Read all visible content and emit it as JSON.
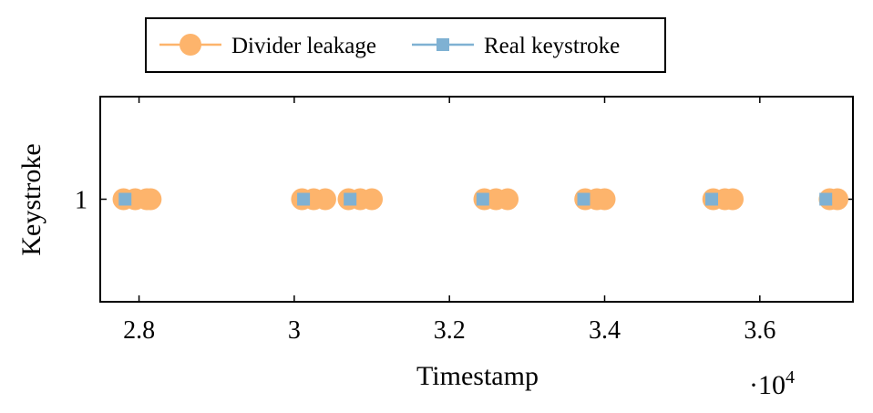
{
  "chart_data": {
    "type": "scatter",
    "xlabel": "Timestamp",
    "ylabel": "Keystroke",
    "x_multiplier_label": "·10",
    "x_multiplier_exponent": "4",
    "xlim": [
      27500,
      37200
    ],
    "ylim": [
      0,
      2
    ],
    "x_ticks": [
      28000,
      30000,
      32000,
      34000,
      36000
    ],
    "x_tick_labels": [
      "2.8",
      "3",
      "3.2",
      "3.4",
      "3.6"
    ],
    "y_ticks": [
      1
    ],
    "y_tick_labels": [
      "1"
    ],
    "grid": false,
    "legend_position": "top-center",
    "series": [
      {
        "name": "Divider leakage",
        "color": "#FDB46C",
        "marker": "circle",
        "x": [
          27800,
          27950,
          28100,
          28150,
          30100,
          30250,
          30400,
          30700,
          30850,
          31000,
          32450,
          32600,
          32750,
          33750,
          33900,
          34000,
          35400,
          35550,
          35650,
          36900,
          37000
        ],
        "y": [
          1,
          1,
          1,
          1,
          1,
          1,
          1,
          1,
          1,
          1,
          1,
          1,
          1,
          1,
          1,
          1,
          1,
          1,
          1,
          1,
          1
        ]
      },
      {
        "name": "Real keystroke",
        "color": "#7FB1D3",
        "marker": "square",
        "x": [
          27820,
          30120,
          30720,
          32430,
          33730,
          35380,
          36850
        ],
        "y": [
          1,
          1,
          1,
          1,
          1,
          1,
          1
        ]
      }
    ]
  }
}
